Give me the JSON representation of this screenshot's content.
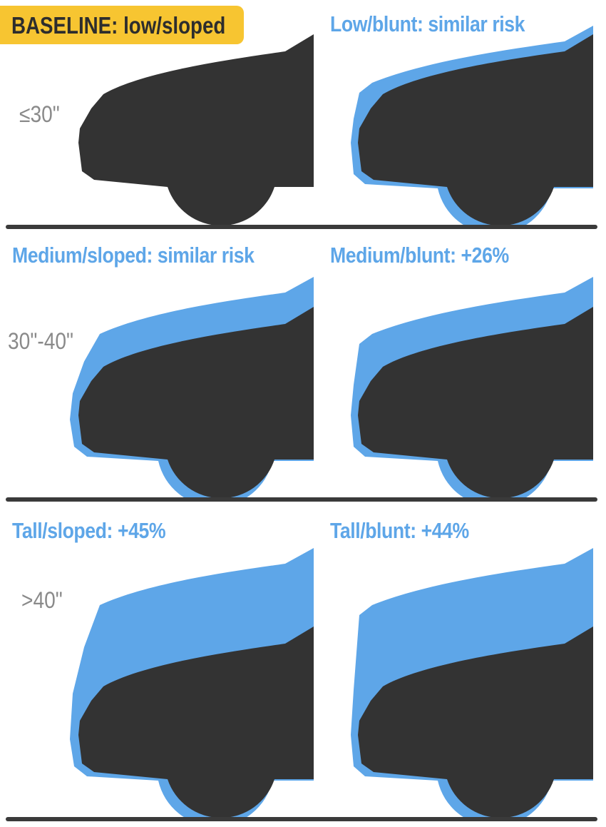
{
  "colors": {
    "vehicle": "#333333",
    "comparison": "#5ea6e8",
    "baseline_badge": "#f7c531",
    "ground": "#3a3a3a"
  },
  "height_labels": [
    "≤30\"",
    "30\"-40\"",
    ">40\""
  ],
  "panels": [
    {
      "label": "BASELINE: low/sloped",
      "height": "low",
      "shape": "sloped",
      "baseline": true
    },
    {
      "label": "Low/blunt: similar risk",
      "height": "low",
      "shape": "blunt"
    },
    {
      "label": "Medium/sloped: similar risk",
      "height": "medium",
      "shape": "sloped"
    },
    {
      "label": "Medium/blunt: +26%",
      "height": "medium",
      "shape": "blunt"
    },
    {
      "label": "Tall/sloped: +45%",
      "height": "tall",
      "shape": "sloped"
    },
    {
      "label": "Tall/blunt: +44%",
      "height": "tall",
      "shape": "blunt"
    }
  ]
}
